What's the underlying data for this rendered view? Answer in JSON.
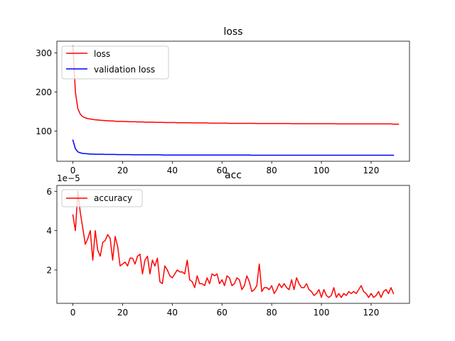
{
  "chart_data": [
    {
      "type": "line",
      "title": "loss",
      "xlabel": "",
      "ylabel": "",
      "xlim": [
        -6.45,
        135.45
      ],
      "ylim": [
        23,
        330
      ],
      "xticks": [
        0,
        20,
        40,
        60,
        80,
        100,
        120
      ],
      "xtick_labels": [
        "0",
        "20",
        "40",
        "60",
        "80",
        "100",
        "120"
      ],
      "yticks": [
        100,
        200,
        300
      ],
      "ytick_labels": [
        "100",
        "200",
        "300"
      ],
      "grid": false,
      "legend": "upper left",
      "series": [
        {
          "name": "loss",
          "color": "#ff0000",
          "values": [
            318,
            200,
            157,
            143,
            137,
            134,
            132,
            131,
            130,
            129,
            128.5,
            128,
            127.5,
            127,
            126.5,
            126,
            126,
            125.5,
            125,
            125,
            125,
            124.5,
            124.5,
            124,
            124,
            124,
            123.5,
            123.5,
            123.5,
            123,
            123,
            123,
            123,
            122.5,
            122.5,
            122.5,
            122.5,
            122,
            122,
            122,
            122,
            122,
            121.5,
            121.5,
            121.5,
            121.5,
            121.5,
            121.5,
            121,
            121,
            121,
            121,
            121,
            121,
            121,
            120.5,
            120.5,
            120.5,
            120.5,
            120.5,
            120.5,
            120.5,
            120.5,
            120,
            120,
            120,
            120,
            120,
            120,
            120,
            120,
            120,
            120,
            120,
            119.5,
            119.5,
            119.5,
            119.5,
            119.5,
            119.5,
            119.5,
            119.5,
            119.5,
            119.5,
            119.5,
            119.5,
            119.5,
            119.5,
            119,
            119,
            119,
            119,
            119,
            119,
            119,
            119,
            119,
            119,
            119,
            119,
            119,
            119,
            119,
            119,
            119,
            119,
            118.5,
            118.5,
            118.5,
            118.5,
            118.5,
            118.5,
            118.5,
            118.5,
            118.5,
            118.5,
            118.5,
            118.5,
            118.5,
            118.5,
            118.5,
            118.5,
            118.5,
            118.5,
            118.5,
            118.5,
            118.5,
            118.5,
            118.5,
            118,
            118,
            118
          ]
        },
        {
          "name": "validation loss",
          "color": "#0000ff",
          "values": [
            77,
            55,
            47,
            44.5,
            43,
            42.5,
            42,
            41.5,
            41.5,
            41,
            41,
            41,
            41,
            40.5,
            40.5,
            40.5,
            40.5,
            40.5,
            40,
            40,
            40,
            40,
            40,
            40,
            39.5,
            39.5,
            39.5,
            39.5,
            39.5,
            39.5,
            39.5,
            39.5,
            39.5,
            39.5,
            39.5,
            39.5,
            39,
            39,
            39,
            39,
            39,
            39,
            39,
            39,
            39,
            39,
            39,
            39,
            39,
            39,
            39,
            39,
            39,
            39,
            39,
            39,
            39,
            39,
            39,
            39,
            39,
            39,
            39,
            39,
            39,
            39,
            39,
            39,
            39,
            39,
            39,
            39,
            38.5,
            38.5,
            38.5,
            38.5,
            38.5,
            38.5,
            38.5,
            38.5,
            38.5,
            38.5,
            38.5,
            38.5,
            38.5,
            38.5,
            38.5,
            38.5,
            38.5,
            38.5,
            38.5,
            38.5,
            38.5,
            38.5,
            38.5,
            38.5,
            38.5,
            38.5,
            38.5,
            38.5,
            38.5,
            38.5,
            38.5,
            38.5,
            38.5,
            38.5,
            38.5,
            38.5,
            38.5,
            38.5,
            38.5,
            38.5,
            38.5,
            38.5,
            38.5,
            38.5,
            38.5,
            38.5,
            38.5,
            38.5,
            38.5,
            38.5,
            38.5,
            38.5,
            38.5,
            38.5,
            38.5,
            38.5,
            38.5,
            38.5
          ]
        }
      ]
    },
    {
      "type": "line",
      "title": "acc",
      "xlabel": "",
      "ylabel": "",
      "offset_text": "1e−5",
      "xlim": [
        -6.45,
        135.45
      ],
      "ylim": [
        0.3,
        6.3
      ],
      "xticks": [
        0,
        20,
        40,
        60,
        80,
        100,
        120
      ],
      "xtick_labels": [
        "0",
        "20",
        "40",
        "60",
        "80",
        "100",
        "120"
      ],
      "yticks": [
        2,
        4,
        6
      ],
      "ytick_labels": [
        "2",
        "4",
        "6"
      ],
      "grid": false,
      "legend": "upper left",
      "series": [
        {
          "name": "accuracy",
          "color": "#ff0000",
          "values": [
            4.8,
            4.0,
            6.0,
            4.9,
            4.1,
            3.3,
            3.6,
            4.0,
            2.5,
            4.0,
            3.0,
            2.7,
            3.4,
            3.5,
            3.8,
            3.6,
            2.5,
            3.7,
            3.2,
            2.2,
            2.3,
            2.4,
            2.2,
            2.6,
            2.6,
            2.3,
            2.7,
            2.8,
            1.8,
            2.5,
            2.7,
            1.8,
            2.5,
            2.2,
            2.6,
            1.4,
            1.3,
            2.2,
            2.0,
            1.7,
            1.6,
            1.8,
            2.0,
            1.9,
            1.9,
            1.8,
            2.5,
            1.5,
            1.4,
            1.1,
            1.7,
            1.3,
            1.3,
            1.2,
            1.6,
            1.3,
            1.8,
            1.7,
            1.8,
            1.3,
            1.5,
            1.2,
            1.7,
            1.6,
            1.2,
            1.3,
            1.6,
            1.5,
            1.0,
            1.2,
            1.7,
            1.4,
            0.9,
            1.0,
            1.2,
            2.3,
            0.9,
            1.1,
            1.1,
            1.0,
            1.2,
            0.8,
            1.0,
            1.3,
            1.1,
            1.3,
            1.1,
            1.0,
            1.5,
            1.0,
            1.6,
            1.3,
            1.1,
            1.1,
            1.3,
            1.0,
            0.9,
            0.7,
            0.8,
            1.0,
            0.6,
            1.0,
            0.7,
            0.6,
            0.7,
            1.1,
            0.6,
            0.8,
            0.6,
            0.8,
            0.7,
            0.9,
            0.8,
            0.9,
            0.8,
            1.0,
            1.2,
            0.9,
            0.8,
            0.6,
            0.8,
            0.6,
            0.7,
            0.9,
            0.6,
            0.9,
            1.0,
            0.8,
            1.1,
            0.8
          ]
        }
      ]
    }
  ]
}
